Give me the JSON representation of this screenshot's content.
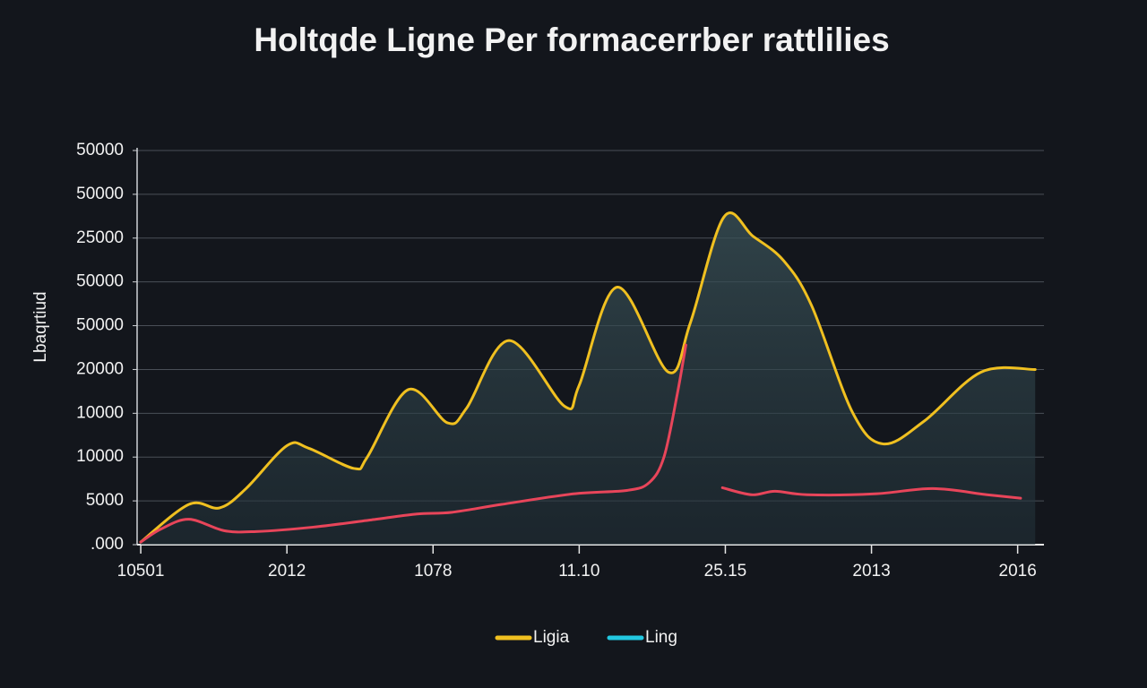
{
  "chart_data": {
    "type": "line",
    "title": "Holtqde Ligne Per formacerrber rattlilies",
    "ylabel": "Lbaqrtiud",
    "xlim": [
      -0.025,
      6.18
    ],
    "xticks": [
      {
        "value": 0,
        "label": "10501"
      },
      {
        "value": 1,
        "label": "2012"
      },
      {
        "value": 2,
        "label": "1078"
      },
      {
        "value": 3,
        "label": "11.10"
      },
      {
        "value": 4,
        "label": "25.15"
      },
      {
        "value": 5,
        "label": "2013"
      },
      {
        "value": 6,
        "label": "2016"
      }
    ],
    "ylim": [
      0,
      45000
    ],
    "yticks": [
      {
        "value": 0,
        "label": ".000"
      },
      5000,
      10000,
      {
        "value": 15000,
        "label": "10000"
      },
      {
        "value": 20000,
        "label": "20000"
      },
      {
        "value": 25000,
        "label": "50000"
      },
      {
        "value": 30000,
        "label": "50000"
      },
      {
        "value": 35000,
        "label": "25000"
      },
      {
        "value": 40000,
        "label": "50000"
      },
      {
        "value": 45000,
        "label": "50000"
      }
    ],
    "grid": true,
    "series": [
      {
        "name": "Ligia",
        "color": "#f0c020",
        "fill": true,
        "x": [
          0,
          0.33,
          0.54,
          0.72,
          1.0,
          1.15,
          1.46,
          1.55,
          1.83,
          2.1,
          2.23,
          2.52,
          2.9,
          3.0,
          3.26,
          3.61,
          3.76,
          3.99,
          4.19,
          4.4,
          4.59,
          4.87,
          5.08,
          5.36,
          5.75,
          6.12
        ],
        "values": [
          300,
          4600,
          4200,
          6400,
          11300,
          11000,
          8700,
          10000,
          17700,
          13900,
          15600,
          23300,
          15800,
          18200,
          29400,
          19700,
          25300,
          37400,
          35200,
          32400,
          27300,
          15100,
          11500,
          14100,
          19700,
          20000
        ]
      },
      {
        "name": "Ling",
        "color": "#e8455a",
        "legend_color": "#22c8e0",
        "fill": false,
        "x": [
          0,
          0.14,
          0.33,
          0.57,
          0.79,
          1.18,
          1.61,
          1.89,
          2.13,
          2.47,
          2.96,
          3.33,
          3.48,
          3.58,
          3.67,
          3.73,
          3.85,
          3.98,
          4.18,
          4.34,
          4.56,
          5.02,
          5.42,
          5.79,
          6.02
        ],
        "values": [
          300,
          1800,
          2900,
          1600,
          1500,
          2000,
          2900,
          3500,
          3700,
          4600,
          5800,
          6200,
          7100,
          10000,
          17100,
          22800,
          null,
          6500,
          5700,
          6100,
          5700,
          5800,
          6400,
          5700,
          5300
        ]
      }
    ]
  }
}
